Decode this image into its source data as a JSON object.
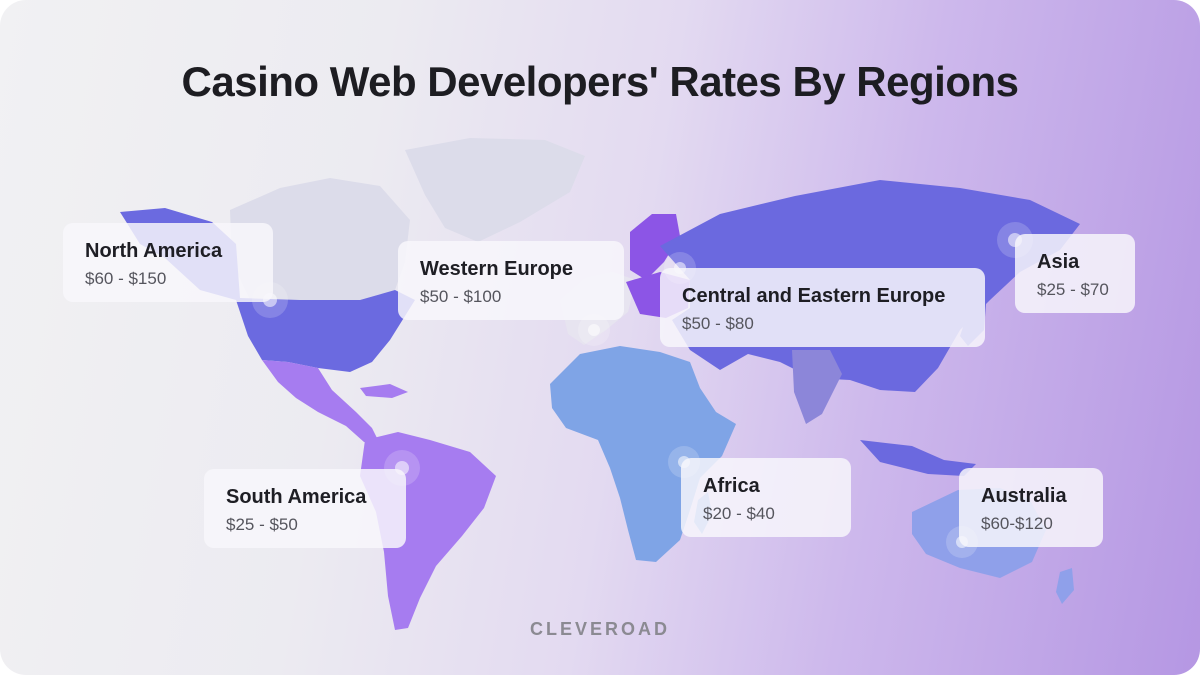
{
  "title": "Casino Web Developers' Rates By Regions",
  "brand": "CLEVEROAD",
  "colors": {
    "north_america": "#6b6ae0",
    "latin_america": "#a67cf0",
    "africa": "#7fa4e6",
    "europe_east": "#8c55e6",
    "asia": "#6b69df",
    "india": "#8c86d9",
    "australia": "#8fa0ea",
    "greenland": "#dcdcea",
    "western_europe": "#e7e4f0"
  },
  "regions": [
    {
      "name": "North America",
      "rate": "$60 - $150"
    },
    {
      "name": "Western Europe",
      "rate": "$50 - $100"
    },
    {
      "name": "Central and Eastern Europe",
      "rate": "$50 - $80"
    },
    {
      "name": "Asia",
      "rate": "$25 - $70"
    },
    {
      "name": "South America",
      "rate": "$25 - $50"
    },
    {
      "name": "Africa",
      "rate": "$20 - $40"
    },
    {
      "name": "Australia",
      "rate": "$60-$120"
    }
  ]
}
